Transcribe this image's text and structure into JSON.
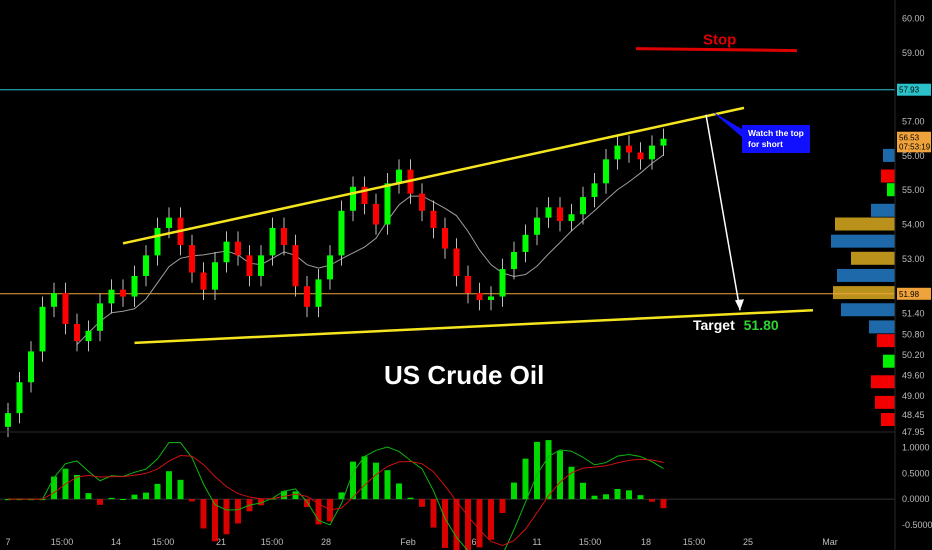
{
  "chart_data": {
    "type": "candlestick",
    "title": "US Crude Oil",
    "price_ylim": [
      47.95,
      60.4
    ],
    "price_ticks": [
      "60.00",
      "59.00",
      "58.00",
      "57.00",
      "56.00",
      "55.00",
      "54.00",
      "53.00",
      "52.00",
      "51.40",
      "50.80",
      "50.20",
      "49.60",
      "49.00",
      "48.45",
      "47.95"
    ],
    "x_ticks": [
      "7",
      "15:00",
      "14",
      "15:00",
      "21",
      "15:00",
      "28",
      "Feb",
      "6",
      "11",
      "15:00",
      "18",
      "15:00",
      "25",
      "Mar"
    ],
    "price_tag_labels": {
      "cyan_level": "57.93",
      "current": "56.53",
      "countdown": "07:53:19",
      "orange_level": "51.98"
    },
    "levels": {
      "cyan": 57.93,
      "orange": 51.98
    },
    "stop_label": "Stop",
    "stop_level": 59.1,
    "target_label": "Target",
    "target_value": "51.80",
    "annotation_text": "Watch the top for short",
    "channel_upper": [
      [
        10,
        53.45
      ],
      [
        64,
        57.4
      ]
    ],
    "channel_lower": [
      [
        11,
        50.55
      ],
      [
        70,
        51.5
      ]
    ],
    "closes": [
      48.5,
      49.4,
      50.3,
      51.6,
      52.0,
      51.1,
      50.6,
      50.9,
      51.7,
      52.1,
      51.9,
      52.5,
      53.1,
      53.9,
      54.2,
      53.4,
      52.6,
      52.1,
      52.9,
      53.5,
      53.1,
      52.5,
      53.1,
      53.9,
      53.4,
      52.2,
      51.6,
      52.4,
      53.1,
      54.4,
      55.1,
      54.6,
      54.0,
      55.2,
      55.6,
      54.9,
      54.4,
      53.9,
      53.3,
      52.5,
      52.0,
      51.8,
      51.9,
      52.7,
      53.2,
      53.7,
      54.2,
      54.5,
      54.1,
      54.3,
      54.8,
      55.2,
      55.9,
      56.3,
      56.1,
      55.9,
      56.3,
      56.5
    ],
    "macd_ylim": [
      -0.6,
      1.15
    ],
    "macd_ticks": [
      "1.0000",
      "0.5000",
      "0.0000",
      "-0.5000"
    ],
    "colors": {
      "up": "#00ff00",
      "down": "#ff0000",
      "channel": "#f5e51f",
      "stop": "#e00000",
      "cyan": "#2ac1c9",
      "orange": "#f0a33b",
      "annotation_bg": "#1010ff",
      "macd": "#0fb60f",
      "signal": "#d01010"
    }
  }
}
